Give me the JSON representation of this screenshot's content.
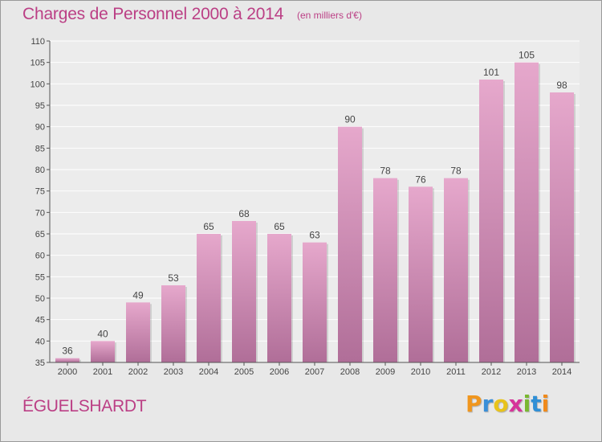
{
  "header": {
    "title": "Charges de Personnel 2000 à 2014",
    "subtitle": "(en milliers d'€)"
  },
  "commune": "ÉGUELSHARDT",
  "brand": {
    "letters": [
      "P",
      "r",
      "o",
      "x",
      "i",
      "t",
      "i"
    ],
    "colors": [
      "#f0961e",
      "#3a8fd8",
      "#e8c31b",
      "#d6339a",
      "#7ab830",
      "#2f8fd6",
      "#f08a1c"
    ]
  },
  "colors": {
    "bar_top": "#e6a8cc",
    "bar_bottom": "#b06e98",
    "accent": "#bb3f85"
  },
  "chart_data": {
    "type": "bar",
    "categories": [
      "2000",
      "2001",
      "2002",
      "2003",
      "2004",
      "2005",
      "2006",
      "2007",
      "2008",
      "2009",
      "2010",
      "2011",
      "2012",
      "2013",
      "2014"
    ],
    "values": [
      36,
      40,
      49,
      53,
      65,
      68,
      65,
      63,
      90,
      78,
      76,
      78,
      101,
      105,
      98
    ],
    "ylim": [
      35,
      110
    ],
    "yticks": [
      35,
      40,
      45,
      50,
      55,
      60,
      65,
      70,
      75,
      80,
      85,
      90,
      95,
      100,
      105,
      110
    ],
    "grid": "horizontal"
  }
}
